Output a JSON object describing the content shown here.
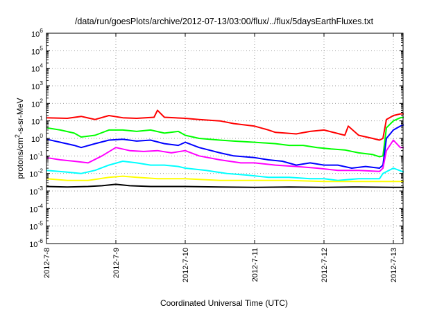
{
  "chart_data": {
    "type": "line",
    "title": "/data/run/goesPlots/archive/2012-07-13/03:00/flux/../flux/5daysEarthFluxes.txt",
    "xlabel": "Coordinated Universal Time (UTC)",
    "ylabel_parts": {
      "pre": "protons/cm",
      "sup": "2",
      "post": "-s-sr-MeV"
    },
    "yscale": "log",
    "ylim": [
      1e-06,
      1000000.0
    ],
    "xlim": [
      "2012-07-08 00:00",
      "2012-07-13 04:00"
    ],
    "grid": true,
    "xticks": [
      {
        "label": "2012-7-8",
        "day": 0
      },
      {
        "label": "2012-7-9",
        "day": 1
      },
      {
        "label": "2012-7-10",
        "day": 2
      },
      {
        "label": "2012-7-11",
        "day": 3
      },
      {
        "label": "2012-7-12",
        "day": 4
      },
      {
        "label": "2012-7-13",
        "day": 5
      }
    ],
    "yticks": [
      {
        "base": "10",
        "exp": "-6",
        "value": -6
      },
      {
        "base": "10",
        "exp": "-5",
        "value": -5
      },
      {
        "base": "10",
        "exp": "-4",
        "value": -4
      },
      {
        "base": "10",
        "exp": "-3",
        "value": -3
      },
      {
        "base": "10",
        "exp": "-2",
        "value": -2
      },
      {
        "base": "10",
        "exp": "-1",
        "value": -1
      },
      {
        "base": "10",
        "exp": "0",
        "value": 0
      },
      {
        "base": "10",
        "exp": "1",
        "value": 1
      },
      {
        "base": "10",
        "exp": "2",
        "value": 2
      },
      {
        "base": "10",
        "exp": "3",
        "value": 3
      },
      {
        "base": "10",
        "exp": "4",
        "value": 4
      },
      {
        "base": "10",
        "exp": "5",
        "value": 5
      },
      {
        "base": "10",
        "exp": "6",
        "value": 6
      }
    ],
    "series": [
      {
        "color": "#ff0000",
        "points": [
          [
            0,
            15
          ],
          [
            0.3,
            14
          ],
          [
            0.5,
            18
          ],
          [
            0.7,
            12
          ],
          [
            0.9,
            20
          ],
          [
            1.1,
            15
          ],
          [
            1.3,
            14
          ],
          [
            1.55,
            16
          ],
          [
            1.6,
            40
          ],
          [
            1.7,
            16
          ],
          [
            2.0,
            14
          ],
          [
            2.2,
            12
          ],
          [
            2.5,
            10
          ],
          [
            2.7,
            7
          ],
          [
            3.0,
            5
          ],
          [
            3.2,
            3
          ],
          [
            3.3,
            2.2
          ],
          [
            3.6,
            1.8
          ],
          [
            3.8,
            2.5
          ],
          [
            4.0,
            3
          ],
          [
            4.3,
            1.5
          ],
          [
            4.35,
            5
          ],
          [
            4.5,
            1.5
          ],
          [
            4.7,
            1.0
          ],
          [
            4.8,
            0.8
          ],
          [
            4.85,
            1
          ],
          [
            4.9,
            12
          ],
          [
            5.0,
            20
          ],
          [
            5.1,
            25
          ],
          [
            5.15,
            25
          ]
        ]
      },
      {
        "color": "#00ff00",
        "points": [
          [
            0,
            4
          ],
          [
            0.2,
            3
          ],
          [
            0.4,
            2
          ],
          [
            0.5,
            1.2
          ],
          [
            0.7,
            1.5
          ],
          [
            0.9,
            3
          ],
          [
            1.1,
            3
          ],
          [
            1.3,
            2.5
          ],
          [
            1.5,
            3
          ],
          [
            1.7,
            2
          ],
          [
            1.9,
            2.5
          ],
          [
            2.0,
            1.5
          ],
          [
            2.2,
            1
          ],
          [
            2.5,
            0.8
          ],
          [
            2.7,
            0.7
          ],
          [
            3.0,
            0.6
          ],
          [
            3.3,
            0.5
          ],
          [
            3.5,
            0.4
          ],
          [
            3.7,
            0.4
          ],
          [
            3.9,
            0.3
          ],
          [
            4.1,
            0.25
          ],
          [
            4.3,
            0.22
          ],
          [
            4.5,
            0.15
          ],
          [
            4.7,
            0.12
          ],
          [
            4.8,
            0.09
          ],
          [
            4.85,
            0.1
          ],
          [
            4.9,
            4
          ],
          [
            5.0,
            10
          ],
          [
            5.1,
            15
          ],
          [
            5.15,
            16
          ]
        ]
      },
      {
        "color": "#0000ff",
        "points": [
          [
            0,
            0.9
          ],
          [
            0.2,
            0.6
          ],
          [
            0.4,
            0.4
          ],
          [
            0.5,
            0.3
          ],
          [
            0.7,
            0.5
          ],
          [
            0.9,
            0.8
          ],
          [
            1.1,
            0.9
          ],
          [
            1.3,
            0.7
          ],
          [
            1.5,
            0.8
          ],
          [
            1.7,
            0.5
          ],
          [
            1.9,
            0.4
          ],
          [
            2.0,
            0.6
          ],
          [
            2.2,
            0.3
          ],
          [
            2.5,
            0.15
          ],
          [
            2.7,
            0.1
          ],
          [
            3.0,
            0.08
          ],
          [
            3.2,
            0.06
          ],
          [
            3.4,
            0.05
          ],
          [
            3.6,
            0.03
          ],
          [
            3.8,
            0.04
          ],
          [
            4.0,
            0.03
          ],
          [
            4.2,
            0.03
          ],
          [
            4.4,
            0.02
          ],
          [
            4.6,
            0.025
          ],
          [
            4.8,
            0.02
          ],
          [
            4.85,
            0.03
          ],
          [
            4.9,
            1
          ],
          [
            5.0,
            3
          ],
          [
            5.1,
            5
          ],
          [
            5.15,
            6
          ]
        ]
      },
      {
        "color": "#ff00ff",
        "points": [
          [
            0,
            0.08
          ],
          [
            0.2,
            0.06
          ],
          [
            0.4,
            0.05
          ],
          [
            0.6,
            0.04
          ],
          [
            0.8,
            0.1
          ],
          [
            1.0,
            0.3
          ],
          [
            1.2,
            0.2
          ],
          [
            1.4,
            0.18
          ],
          [
            1.6,
            0.2
          ],
          [
            1.8,
            0.15
          ],
          [
            2.0,
            0.2
          ],
          [
            2.2,
            0.1
          ],
          [
            2.5,
            0.06
          ],
          [
            2.8,
            0.04
          ],
          [
            3.0,
            0.04
          ],
          [
            3.3,
            0.03
          ],
          [
            3.6,
            0.025
          ],
          [
            3.9,
            0.02
          ],
          [
            4.2,
            0.015
          ],
          [
            4.5,
            0.015
          ],
          [
            4.8,
            0.013
          ],
          [
            4.85,
            0.02
          ],
          [
            4.9,
            0.2
          ],
          [
            5.0,
            0.8
          ],
          [
            5.1,
            0.3
          ],
          [
            5.15,
            0.3
          ]
        ]
      },
      {
        "color": "#00ffff",
        "points": [
          [
            0,
            0.015
          ],
          [
            0.3,
            0.012
          ],
          [
            0.5,
            0.01
          ],
          [
            0.7,
            0.015
          ],
          [
            0.9,
            0.03
          ],
          [
            1.1,
            0.05
          ],
          [
            1.3,
            0.04
          ],
          [
            1.5,
            0.03
          ],
          [
            1.7,
            0.03
          ],
          [
            1.9,
            0.025
          ],
          [
            2.0,
            0.02
          ],
          [
            2.3,
            0.015
          ],
          [
            2.6,
            0.01
          ],
          [
            2.9,
            0.008
          ],
          [
            3.2,
            0.006
          ],
          [
            3.5,
            0.006
          ],
          [
            3.8,
            0.005
          ],
          [
            4.0,
            0.005
          ],
          [
            4.2,
            0.004
          ],
          [
            4.5,
            0.005
          ],
          [
            4.8,
            0.005
          ],
          [
            4.85,
            0.01
          ],
          [
            5.0,
            0.02
          ],
          [
            5.15,
            0.012
          ]
        ]
      },
      {
        "color": "#ffff00",
        "points": [
          [
            0,
            0.005
          ],
          [
            0.3,
            0.004
          ],
          [
            0.6,
            0.004
          ],
          [
            0.9,
            0.006
          ],
          [
            1.1,
            0.007
          ],
          [
            1.3,
            0.006
          ],
          [
            1.6,
            0.005
          ],
          [
            2.0,
            0.005
          ],
          [
            2.5,
            0.004
          ],
          [
            3.0,
            0.004
          ],
          [
            3.5,
            0.004
          ],
          [
            4.0,
            0.0035
          ],
          [
            4.5,
            0.0035
          ],
          [
            5.0,
            0.0035
          ],
          [
            5.15,
            0.0035
          ]
        ]
      },
      {
        "color": "#000000",
        "points": [
          [
            0,
            0.0018
          ],
          [
            0.3,
            0.0017
          ],
          [
            0.6,
            0.0018
          ],
          [
            0.8,
            0.002
          ],
          [
            1.0,
            0.0024
          ],
          [
            1.2,
            0.002
          ],
          [
            1.5,
            0.0018
          ],
          [
            2.0,
            0.0018
          ],
          [
            2.5,
            0.0017
          ],
          [
            3.0,
            0.0016
          ],
          [
            3.5,
            0.0017
          ],
          [
            4.0,
            0.0016
          ],
          [
            4.5,
            0.0017
          ],
          [
            5.0,
            0.0016
          ],
          [
            5.15,
            0.0016
          ]
        ]
      }
    ]
  }
}
